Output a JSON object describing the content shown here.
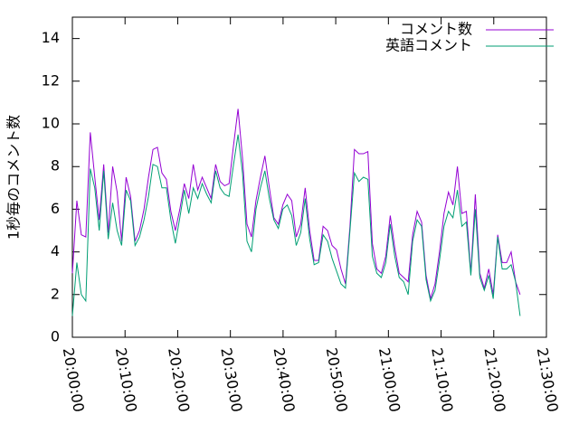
{
  "chart_data": {
    "type": "line",
    "ylabel": "1秒毎のコメント数",
    "xlim": [
      "20:00:00",
      "21:30:00"
    ],
    "xticks": [
      "20:00:00",
      "20:10:00",
      "20:20:00",
      "20:30:00",
      "20:40:00",
      "20:50:00",
      "21:00:00",
      "21:10:00",
      "21:20:00",
      "21:30:00"
    ],
    "ylim": [
      0,
      15
    ],
    "yticks": [
      0,
      2,
      4,
      6,
      8,
      10,
      12,
      14
    ],
    "grid": false,
    "legend": "top-right",
    "x": [
      "20:00:00",
      "20:00:51",
      "20:01:42",
      "20:02:33",
      "20:03:24",
      "20:04:15",
      "20:05:06",
      "20:05:57",
      "20:06:48",
      "20:07:39",
      "20:08:30",
      "20:09:21",
      "20:10:12",
      "20:11:03",
      "20:11:54",
      "20:12:45",
      "20:13:36",
      "20:14:27",
      "20:15:18",
      "20:16:09",
      "20:17:00",
      "20:17:51",
      "20:18:42",
      "20:19:33",
      "20:20:24",
      "20:21:15",
      "20:22:06",
      "20:22:57",
      "20:23:48",
      "20:24:39",
      "20:25:30",
      "20:26:21",
      "20:27:12",
      "20:28:03",
      "20:28:54",
      "20:29:45",
      "20:30:36",
      "20:31:27",
      "20:32:18",
      "20:33:09",
      "20:34:00",
      "20:34:51",
      "20:35:42",
      "20:36:33",
      "20:37:24",
      "20:38:15",
      "20:39:06",
      "20:39:57",
      "20:40:48",
      "20:41:39",
      "20:42:30",
      "20:43:21",
      "20:44:12",
      "20:45:03",
      "20:45:54",
      "20:46:45",
      "20:47:36",
      "20:48:27",
      "20:49:18",
      "20:50:09",
      "20:51:00",
      "20:51:51",
      "20:52:42",
      "20:53:33",
      "20:54:24",
      "20:55:15",
      "20:56:06",
      "20:56:57",
      "20:57:48",
      "20:58:39",
      "20:59:30",
      "21:00:21",
      "21:01:12",
      "21:02:03",
      "21:02:54",
      "21:03:45",
      "21:04:36",
      "21:05:27",
      "21:06:18",
      "21:07:09",
      "21:08:00",
      "21:08:51",
      "21:09:42",
      "21:10:33",
      "21:11:24",
      "21:12:15",
      "21:13:06",
      "21:13:57",
      "21:14:48",
      "21:15:39",
      "21:16:30",
      "21:17:21",
      "21:18:12",
      "21:19:03",
      "21:19:54",
      "21:20:45",
      "21:21:36",
      "21:22:27",
      "21:23:18",
      "21:24:09",
      "21:25:00"
    ],
    "series": [
      {
        "name": "コメント数",
        "color": "#9400d3",
        "values": [
          3.0,
          6.4,
          4.8,
          4.7,
          9.6,
          7.5,
          5.5,
          8.1,
          4.9,
          8.0,
          6.8,
          4.5,
          7.5,
          6.6,
          4.5,
          5.0,
          6.0,
          7.5,
          8.8,
          8.9,
          7.7,
          7.4,
          5.9,
          5.0,
          6.0,
          7.2,
          6.5,
          8.1,
          6.9,
          7.5,
          7.0,
          6.5,
          8.1,
          7.3,
          7.1,
          7.2,
          9.0,
          10.7,
          8.4,
          5.3,
          4.7,
          6.4,
          7.5,
          8.5,
          7.0,
          5.6,
          5.3,
          6.2,
          6.7,
          6.4,
          4.7,
          5.3,
          7.0,
          5.0,
          3.6,
          3.6,
          5.2,
          5.0,
          4.3,
          4.1,
          3.2,
          2.5,
          5.2,
          8.8,
          8.6,
          8.6,
          8.7,
          4.4,
          3.2,
          3.0,
          3.8,
          5.7,
          4.2,
          3.0,
          2.8,
          2.6,
          4.8,
          5.9,
          5.4,
          2.9,
          1.8,
          2.5,
          4.0,
          5.8,
          6.8,
          6.2,
          8.0,
          5.8,
          5.9,
          3.0,
          6.7,
          3.0,
          2.3,
          3.2,
          2.0,
          4.8,
          3.5,
          3.5,
          4.0,
          2.6,
          2.0
        ]
      },
      {
        "name": "英語コメント",
        "color": "#009e73",
        "values": [
          1.0,
          3.5,
          2.0,
          1.7,
          7.9,
          7.0,
          5.0,
          7.8,
          4.6,
          6.3,
          5.0,
          4.3,
          6.9,
          6.4,
          4.3,
          4.7,
          5.5,
          6.6,
          8.1,
          8.0,
          7.0,
          7.0,
          5.5,
          4.4,
          5.6,
          6.9,
          5.8,
          7.0,
          6.5,
          7.2,
          6.7,
          6.3,
          7.8,
          7.0,
          6.7,
          6.6,
          8.1,
          9.5,
          7.7,
          4.5,
          4.0,
          6.0,
          7.0,
          7.8,
          6.5,
          5.5,
          5.1,
          6.0,
          6.2,
          5.7,
          4.3,
          4.9,
          6.5,
          4.6,
          3.4,
          3.5,
          4.8,
          4.5,
          3.7,
          3.1,
          2.5,
          2.3,
          5.0,
          7.7,
          7.3,
          7.5,
          7.4,
          3.8,
          3.0,
          2.8,
          3.5,
          5.3,
          3.8,
          2.8,
          2.6,
          2.0,
          4.5,
          5.5,
          5.2,
          2.7,
          1.7,
          2.2,
          3.6,
          5.2,
          5.9,
          5.6,
          6.9,
          5.2,
          5.4,
          2.9,
          6.0,
          2.8,
          2.2,
          2.9,
          1.8,
          4.7,
          3.2,
          3.2,
          3.4,
          2.6,
          1.0
        ]
      }
    ]
  }
}
